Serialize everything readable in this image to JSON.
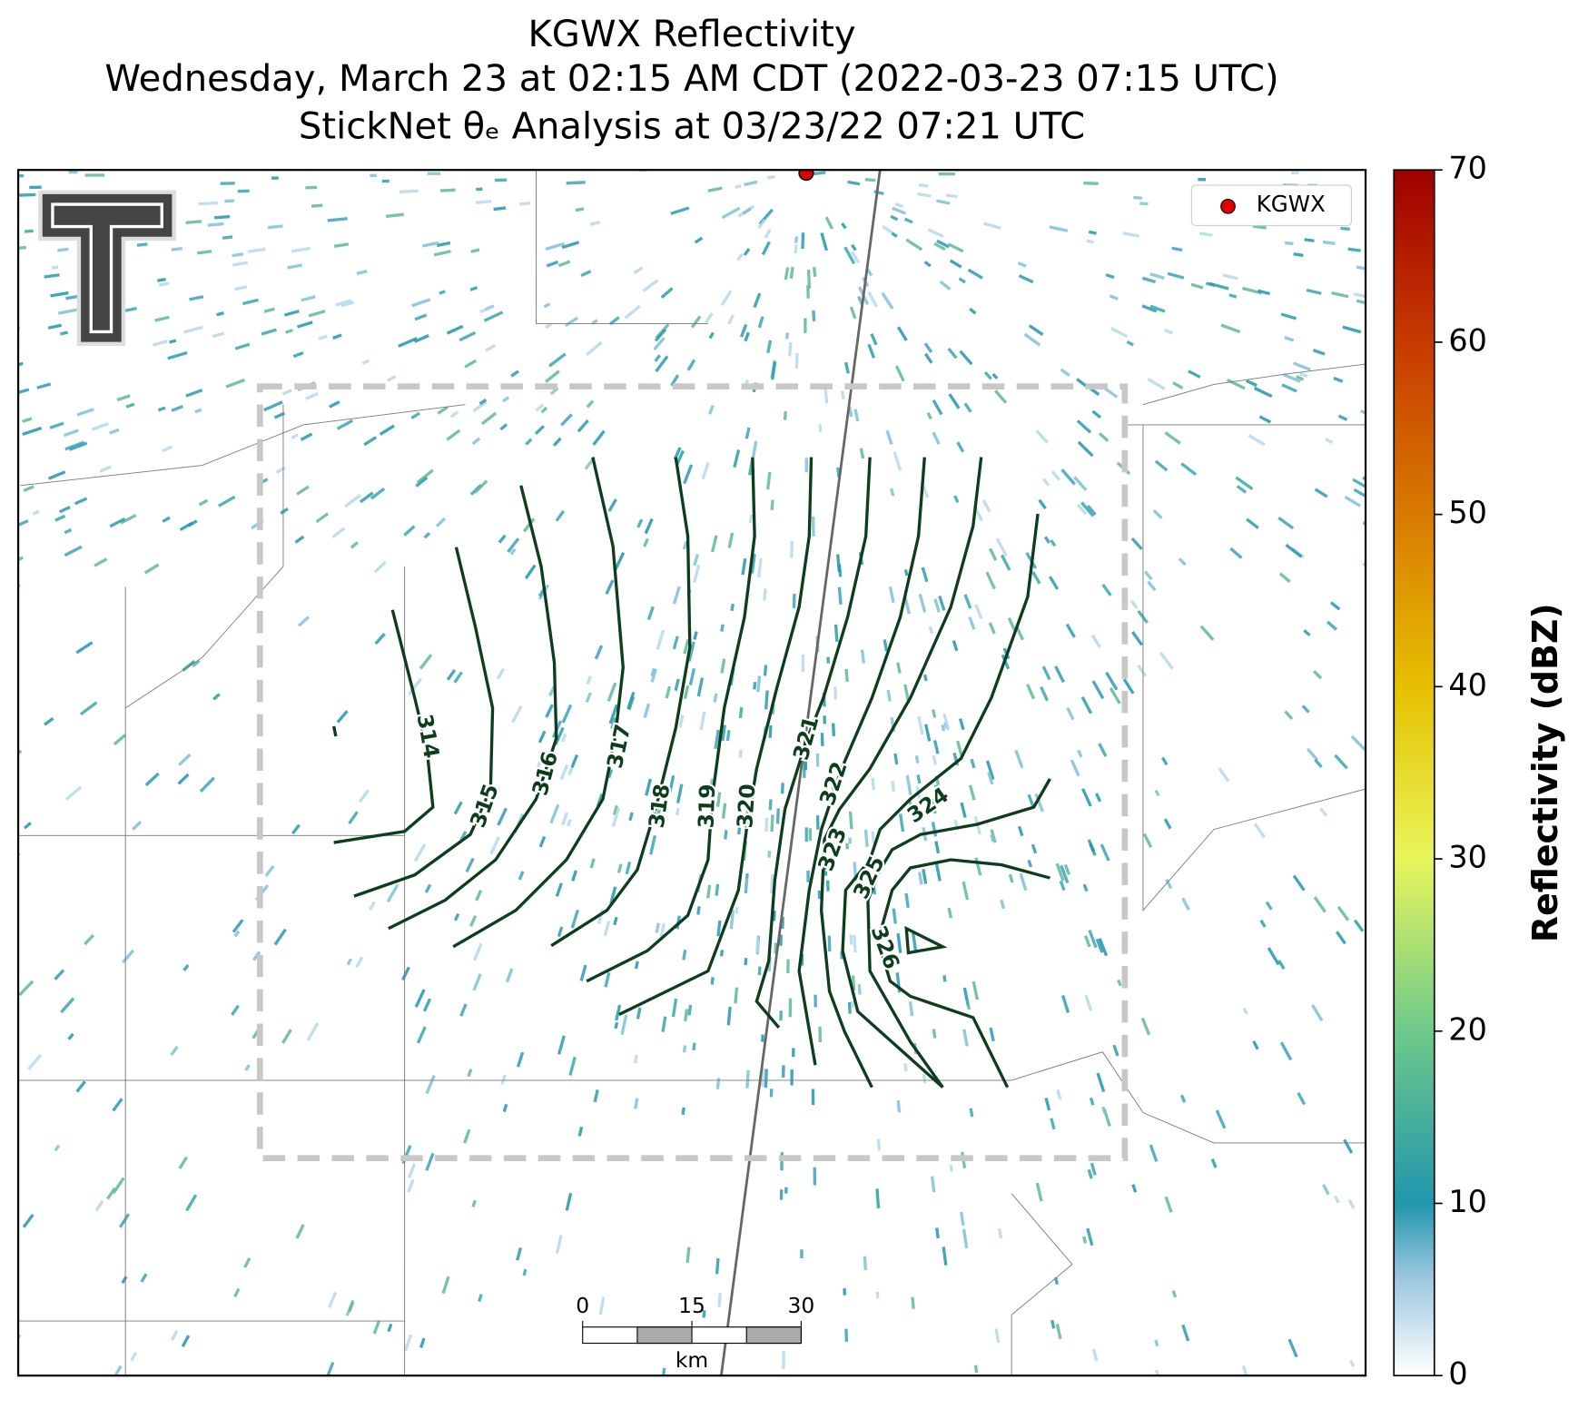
{
  "title": [
    "KGWX Reflectivity",
    "Wednesday, March 23 at 02:15 AM CDT (2022-03-23 07:15 UTC)",
    "StickNet θₑ Analysis at 03/23/22 07:21 UTC"
  ],
  "legend": {
    "label": "KGWX"
  },
  "colorbar": {
    "label": "Reflectivity (dBZ)",
    "lim": [
      0,
      70
    ],
    "ticks": [
      0,
      10,
      20,
      30,
      40,
      50,
      60,
      70
    ]
  },
  "contours": [
    {
      "level": 314
    },
    {
      "level": 315
    },
    {
      "level": 316
    },
    {
      "level": 317
    },
    {
      "level": 318
    },
    {
      "level": 319
    },
    {
      "level": 320
    },
    {
      "level": 321
    },
    {
      "level": 322
    },
    {
      "level": 323
    },
    {
      "level": 324
    },
    {
      "level": 325
    },
    {
      "level": 326
    }
  ],
  "scalebar": {
    "ticks": [
      0,
      15,
      30
    ],
    "unit": "km"
  }
}
